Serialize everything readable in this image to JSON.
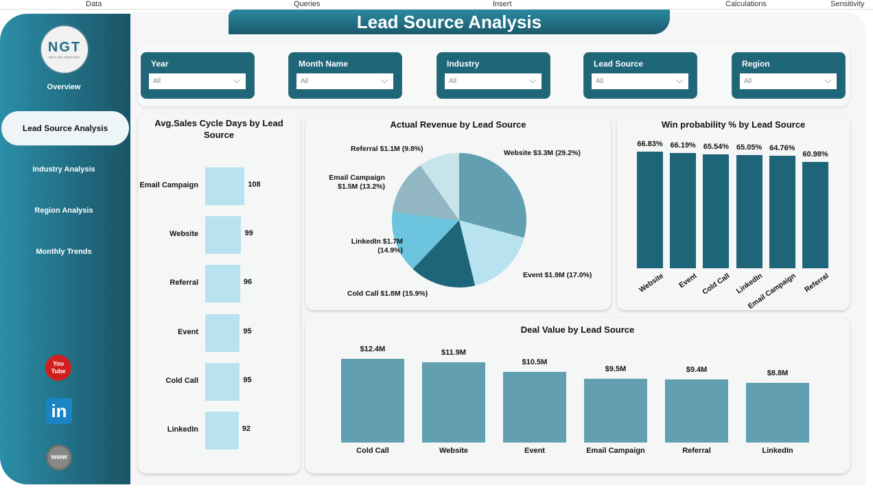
{
  "ribbon": [
    "Data",
    "Queries",
    "Insert",
    "Calculations",
    "Sensitivity"
  ],
  "header": {
    "title": "Lead Source Analysis"
  },
  "logo": {
    "text": "NGT",
    "tagline": "NEXT GEN TEMPLATES"
  },
  "sidebar": {
    "items": [
      {
        "label": "Overview"
      },
      {
        "label": "Lead Source Analysis",
        "active": true
      },
      {
        "label": "Industry Analysis"
      },
      {
        "label": "Region Analysis"
      },
      {
        "label": "Monthly Trends"
      }
    ],
    "social": [
      {
        "icon": "youtube-icon",
        "label": "You Tube"
      },
      {
        "icon": "linkedin-icon",
        "label": "in"
      },
      {
        "icon": "website-icon",
        "label": "www"
      }
    ]
  },
  "filters": [
    {
      "label": "Year",
      "value": "All"
    },
    {
      "label": "Month Name",
      "value": "All"
    },
    {
      "label": "Industry",
      "value": "All"
    },
    {
      "label": "Lead Source",
      "value": "All"
    },
    {
      "label": "Region",
      "value": "All"
    }
  ],
  "colors": {
    "accent": "#1f6678",
    "light_bar": "#b8e2ef",
    "mid_bar": "#62a0b1",
    "dark_bar": "#1e6579"
  },
  "chart_data": [
    {
      "type": "bar",
      "orientation": "horizontal",
      "title": "Avg.Sales Cycle Days by Lead Source",
      "categories": [
        "Email Campaign",
        "Website",
        "Referral",
        "Event",
        "Cold Call",
        "LinkedIn"
      ],
      "values": [
        108,
        99,
        96,
        95,
        95,
        92
      ],
      "data_labels": [
        "108",
        "99",
        "96",
        "95",
        "95",
        "92"
      ]
    },
    {
      "type": "pie",
      "title": "Actual Revenue by Lead Source",
      "categories": [
        "Website",
        "Event",
        "Cold Call",
        "LinkedIn",
        "Email Campaign",
        "Referral"
      ],
      "values": [
        29.2,
        17.0,
        15.9,
        14.9,
        13.2,
        9.8
      ],
      "colors": [
        "#62a0b1",
        "#b8e2ef",
        "#1e6579",
        "#6cc4de",
        "#92b6c2",
        "#c8e4eb"
      ],
      "data_labels": [
        "Website $3.3M (29.2%)",
        "Event $1.9M (17.0%)",
        "Cold Call $1.8M (15.9%)",
        "LinkedIn $1.7M (14.9%)",
        "Email Campaign $1.5M (13.2%)",
        "Referral $1.1M (9.8%)"
      ]
    },
    {
      "type": "bar",
      "title": "Win probability % by Lead Source",
      "categories": [
        "Website",
        "Event",
        "Cold Call",
        "LinkedIn",
        "Email Campaign",
        "Referral"
      ],
      "values": [
        66.83,
        66.19,
        65.54,
        65.05,
        64.76,
        60.98
      ],
      "data_labels": [
        "66.83%",
        "66.19%",
        "65.54%",
        "65.05%",
        "64.76%",
        "60.98%"
      ]
    },
    {
      "type": "bar",
      "title": "Deal Value by Lead Source",
      "categories": [
        "Cold Call",
        "Website",
        "Event",
        "Email Campaign",
        "Referral",
        "LinkedIn"
      ],
      "values": [
        12.4,
        11.9,
        10.5,
        9.5,
        9.4,
        8.8
      ],
      "data_labels": [
        "$12.4M",
        "$11.9M",
        "$10.5M",
        "$9.5M",
        "$9.4M",
        "$8.8M"
      ]
    }
  ]
}
